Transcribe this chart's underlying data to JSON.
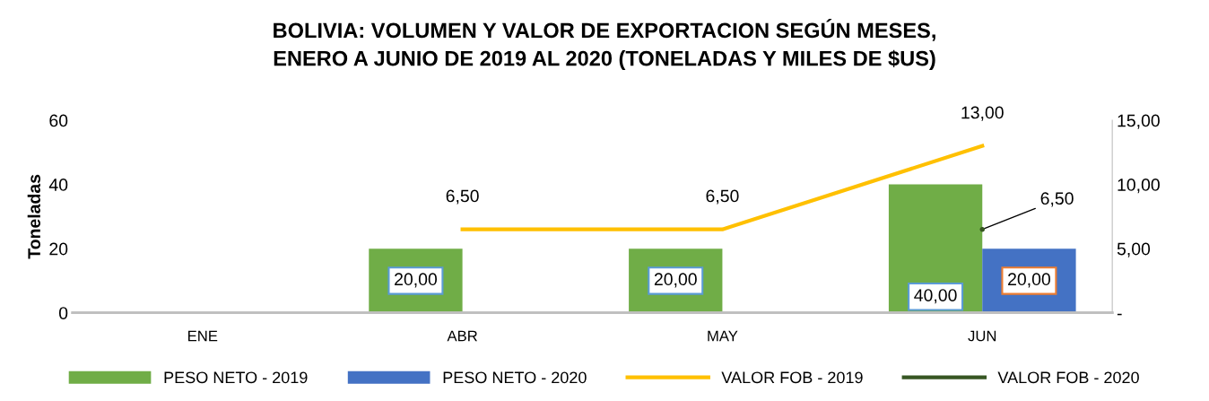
{
  "chart_data": {
    "type": "bar",
    "title": "BOLIVIA: VOLUMEN Y VALOR DE EXPORTACION SEGÚN MESES,\nENERO A JUNIO DE 2019 AL 2020 (TONELADAS Y MILES DE $US)",
    "ylabel": "Toneladas",
    "categories": [
      "ENE",
      "ABR",
      "MAY",
      "JUN"
    ],
    "series": [
      {
        "name": "PESO NETO - 2019",
        "color": "#70ad47",
        "values": [
          null,
          20,
          20,
          40
        ],
        "value_labels": [
          null,
          "20,00",
          "20,00",
          "40,00"
        ]
      },
      {
        "name": "PESO NETO - 2020",
        "color": "#4472c4",
        "values": [
          null,
          null,
          null,
          20
        ],
        "value_labels": [
          null,
          null,
          null,
          "20,00"
        ]
      },
      {
        "name": "VALOR FOB - 2019",
        "type": "line",
        "axis": "y2",
        "color": "#ffc000",
        "values": [
          null,
          6.5,
          6.5,
          13
        ],
        "value_labels": [
          null,
          "6,50",
          "6,50",
          "13,00"
        ]
      },
      {
        "name": "VALOR FOB - 2020",
        "type": "line",
        "axis": "y2",
        "color": "#375623",
        "values": [
          null,
          null,
          null,
          6.5
        ],
        "value_labels": [
          null,
          null,
          null,
          "6,50"
        ]
      }
    ],
    "ylim": [
      0,
      60
    ],
    "yticks": [
      0,
      20,
      40,
      60
    ],
    "y2lim": [
      0,
      15
    ],
    "y2ticks": [
      {
        "value": 0,
        "label": "-"
      },
      {
        "value": 5,
        "label": "5,00"
      },
      {
        "value": 10,
        "label": "10,00"
      },
      {
        "value": 15,
        "label": "15,00"
      }
    ],
    "grid": false,
    "legend": "bottom",
    "marker": "none",
    "line_style": "solid"
  }
}
